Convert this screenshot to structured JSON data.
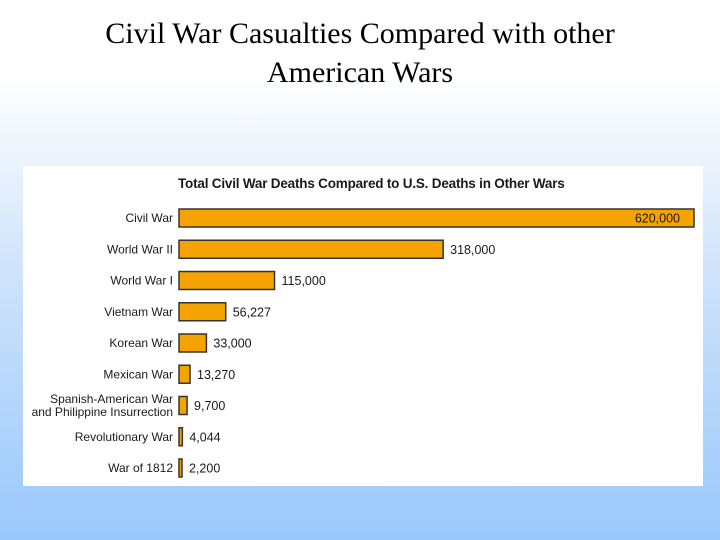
{
  "slide": {
    "title_line1": "Civil War Casualties Compared with other",
    "title_line2": "American Wars"
  },
  "colors": {
    "bar_fill": "#f5a300",
    "bar_stroke": "#333333",
    "text": "#1a1a1a"
  },
  "chart_data": {
    "type": "bar",
    "orientation": "horizontal",
    "title": "Total Civil War Deaths Compared to U.S. Deaths in Other Wars",
    "xlabel": "",
    "ylabel": "",
    "grid": false,
    "xlim": [
      0,
      620000
    ],
    "categories": [
      [
        "Civil War"
      ],
      [
        "World War II"
      ],
      [
        "World War I"
      ],
      [
        "Vietnam War"
      ],
      [
        "Korean War"
      ],
      [
        "Mexican War"
      ],
      [
        "Spanish-American War",
        "and Philippine Insurrection"
      ],
      [
        "Revolutionary War"
      ],
      [
        "War of 1812"
      ]
    ],
    "values": [
      620000,
      318000,
      115000,
      56227,
      33000,
      13270,
      9700,
      4044,
      2200
    ],
    "value_labels": [
      "620,000",
      "318,000",
      "115,000",
      "56,227",
      "33,000",
      "13,270",
      "9,700",
      "4,044",
      "2,200"
    ]
  }
}
